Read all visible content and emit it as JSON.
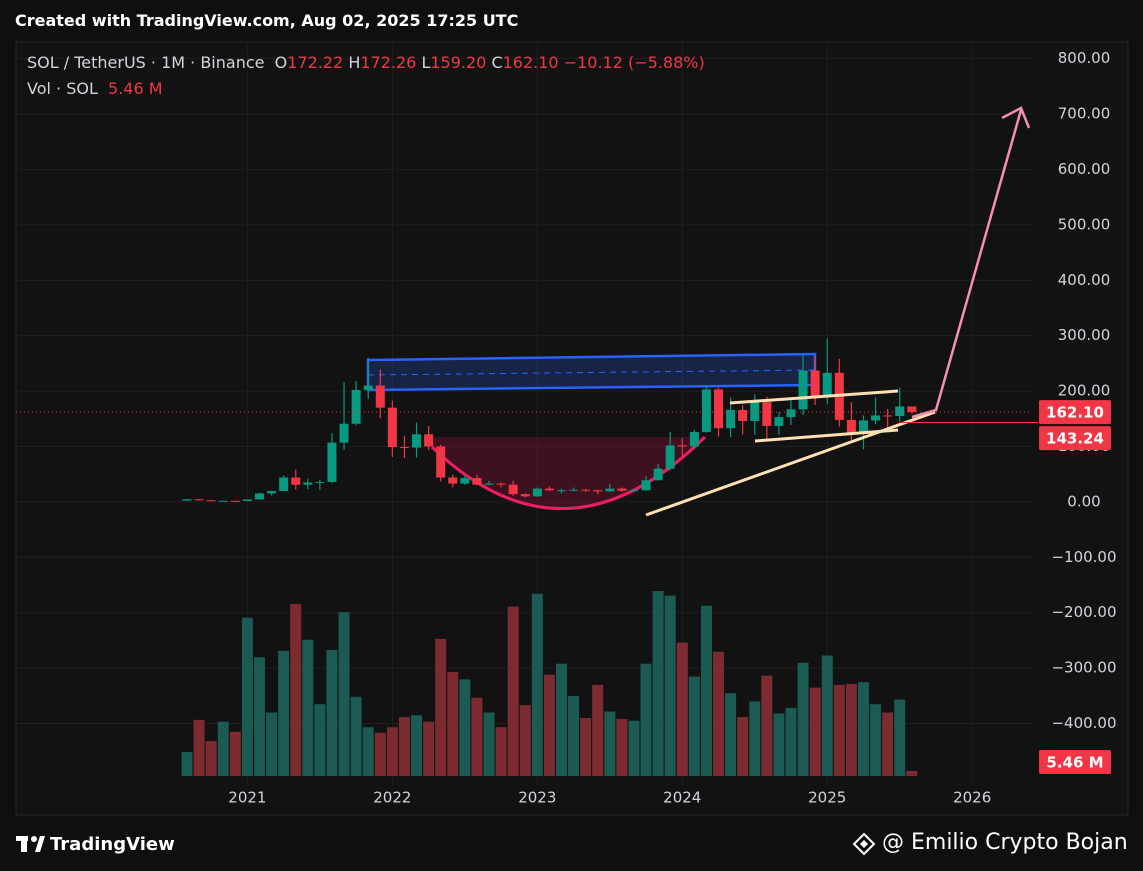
{
  "header": {
    "title": "Created with TradingView.com, Aug 02, 2025 17:25 UTC"
  },
  "footer": {
    "brand": "TradingView",
    "credit": "@ Emilio Crypto Bojan"
  },
  "chart_data": {
    "type": "candlestick",
    "legend": {
      "symbol": "SOL / TetherUS · 1M · Binance",
      "ohlc": [
        {
          "prefix": "O",
          "value": 172.22,
          "label": "172.22"
        },
        {
          "prefix": "H",
          "value": 172.26,
          "label": "172.26"
        },
        {
          "prefix": "L",
          "value": 159.2,
          "label": "159.20"
        },
        {
          "prefix": "C",
          "value": 162.1,
          "label": "162.10"
        }
      ],
      "change": {
        "value": -10.12,
        "label": "−10.12"
      },
      "change_pct": {
        "value": -5.88,
        "label": "(−5.88%)"
      },
      "volume_name": "Vol · SOL"
    },
    "categories": [
      null,
      null,
      null,
      null,
      null,
      "2021",
      null,
      null,
      null,
      null,
      null,
      null,
      null,
      null,
      null,
      null,
      null,
      "2022",
      null,
      null,
      null,
      null,
      null,
      null,
      null,
      null,
      null,
      null,
      null,
      "2023",
      null,
      null,
      null,
      null,
      null,
      null,
      null,
      null,
      null,
      null,
      null,
      "2024",
      null,
      null,
      null,
      null,
      null,
      null,
      null,
      null,
      null,
      null,
      null,
      "2025",
      null,
      null,
      null,
      null,
      null,
      null,
      null,
      null,
      null,
      null,
      null,
      "2026"
    ],
    "open": [
      2.3,
      4.8,
      2.9,
      1.9,
      1.9,
      1.5,
      4.4,
      15.3,
      19.5,
      44,
      31,
      35,
      36,
      107,
      141,
      202,
      210,
      170,
      99,
      98,
      122,
      100,
      44,
      33,
      43,
      31,
      33,
      31,
      14,
      10,
      24,
      21,
      21,
      22,
      21,
      19,
      24,
      20,
      21,
      39,
      60,
      102,
      100,
      126,
      203,
      133,
      166,
      146,
      180,
      137,
      153,
      167,
      237,
      189,
      233,
      148,
      124,
      147,
      156,
      155,
      172.22,
      null,
      null,
      null,
      null,
      null
    ],
    "high": [
      4.9,
      4.9,
      3.3,
      2.4,
      2.3,
      4.8,
      17,
      20,
      48,
      58,
      42,
      40,
      124,
      216,
      218,
      260,
      239,
      183,
      119,
      143,
      137,
      103,
      49,
      48,
      49,
      38,
      35,
      38,
      15,
      26,
      28,
      24,
      26,
      23,
      22,
      32,
      26,
      22,
      46,
      68,
      126,
      115,
      130,
      210,
      206,
      188,
      174,
      194,
      190,
      162,
      183,
      265,
      264,
      295,
      258,
      180,
      156,
      188,
      168,
      206,
      172.26,
      null,
      null,
      null,
      null,
      null
    ],
    "low": [
      1.8,
      2.2,
      1.8,
      1.6,
      1.4,
      1.4,
      4.3,
      11.5,
      19,
      22,
      23,
      22,
      34,
      94,
      138,
      186,
      151,
      81,
      79,
      80,
      94,
      37,
      26,
      31,
      30,
      30,
      26,
      11,
      8,
      9,
      19,
      15,
      19,
      18,
      14,
      18,
      18,
      17,
      20,
      39,
      57,
      79,
      95,
      125,
      118,
      117,
      122,
      121,
      110,
      121,
      139,
      157,
      175,
      176,
      136,
      112,
      95,
      140,
      126,
      145,
      159.2,
      null,
      null,
      null,
      null,
      null
    ],
    "close": [
      4.8,
      2.9,
      1.9,
      1.9,
      1.5,
      4.4,
      15.3,
      19.5,
      44,
      31,
      35,
      36,
      107,
      141,
      202,
      210,
      170,
      99,
      98,
      122,
      100,
      44,
      33,
      43,
      31,
      33,
      31,
      14,
      10,
      24,
      21,
      21,
      22,
      21,
      19,
      24,
      20,
      21,
      39,
      60,
      102,
      100,
      126,
      203,
      133,
      166,
      146,
      180,
      137,
      153,
      167,
      237,
      189,
      233,
      148,
      124,
      147,
      156,
      155,
      172.22,
      162.1,
      null,
      null,
      null,
      null,
      null
    ],
    "volume": [
      26,
      61,
      38,
      59,
      48,
      172,
      129,
      69,
      136,
      187,
      148,
      78,
      137,
      178,
      86,
      53,
      47,
      53,
      64,
      66,
      59,
      149,
      113,
      105,
      85,
      69,
      53,
      184,
      77,
      198,
      110,
      122,
      87,
      63,
      99,
      70,
      62,
      60,
      122,
      201,
      196,
      145,
      108,
      185,
      135,
      90,
      64,
      81,
      109,
      68,
      74,
      123,
      96,
      131,
      99,
      100,
      102,
      78,
      69,
      83,
      5.46,
      null,
      null,
      null,
      null,
      null
    ],
    "volume_label": {
      "value": 5.46,
      "label": "5.46 M"
    },
    "ylim": [
      -520,
      830
    ],
    "yticks": [
      {
        "value": 800,
        "label": "800.00"
      },
      {
        "value": 700,
        "label": "700.00"
      },
      {
        "value": 600,
        "label": "600.00"
      },
      {
        "value": 500,
        "label": "500.00"
      },
      {
        "value": 400,
        "label": "400.00"
      },
      {
        "value": 300,
        "label": "300.00"
      },
      {
        "value": 200,
        "label": "200.00"
      },
      {
        "value": 100,
        "label": "100.00"
      },
      {
        "value": 0,
        "label": "0.00"
      },
      {
        "value": -100,
        "label": "−100.00"
      },
      {
        "value": -200,
        "label": "−200.00"
      },
      {
        "value": -300,
        "label": "−300.00"
      },
      {
        "value": -400,
        "label": "−400.00"
      }
    ],
    "price_lines": [
      {
        "value": 162.1,
        "label": "162.10",
        "color": "#f23645",
        "style": "dotted"
      },
      {
        "value": 143.24,
        "label": "143.24",
        "color": "#f23645",
        "style": "solid"
      }
    ],
    "grid": true,
    "colors": {
      "up": "#089981",
      "down": "#f23645",
      "volume_up": "#1b5b53",
      "volume_down": "#7c2c31"
    }
  }
}
